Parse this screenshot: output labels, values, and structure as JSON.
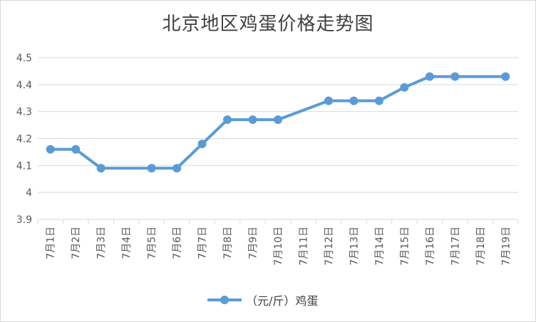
{
  "chart_data": {
    "type": "line",
    "title": "北京地区鸡蛋价格走势图",
    "categories": [
      "7月1日",
      "7月2日",
      "7月3日",
      "7月4日",
      "7月5日",
      "7月6日",
      "7月7日",
      "7月8日",
      "7月9日",
      "7月10日",
      "7月11日",
      "7月12日",
      "7月13日",
      "7月14日",
      "7月15日",
      "7月16日",
      "7月17日",
      "7月18日",
      "7月19日"
    ],
    "series": [
      {
        "name": "（元/斤）鸡蛋",
        "values": [
          4.16,
          4.16,
          4.09,
          null,
          4.09,
          4.09,
          4.18,
          4.27,
          4.27,
          4.27,
          null,
          4.34,
          4.34,
          4.34,
          4.39,
          4.43,
          4.43,
          null,
          4.43
        ],
        "color": "#5b9bd5"
      }
    ],
    "y_ticks": [
      "3.9",
      "4",
      "4.1",
      "4.2",
      "4.3",
      "4.4",
      "4.5"
    ],
    "ylim": [
      3.9,
      4.5
    ],
    "xlabel": "",
    "ylabel": "",
    "grid": true,
    "legend_position": "bottom"
  }
}
